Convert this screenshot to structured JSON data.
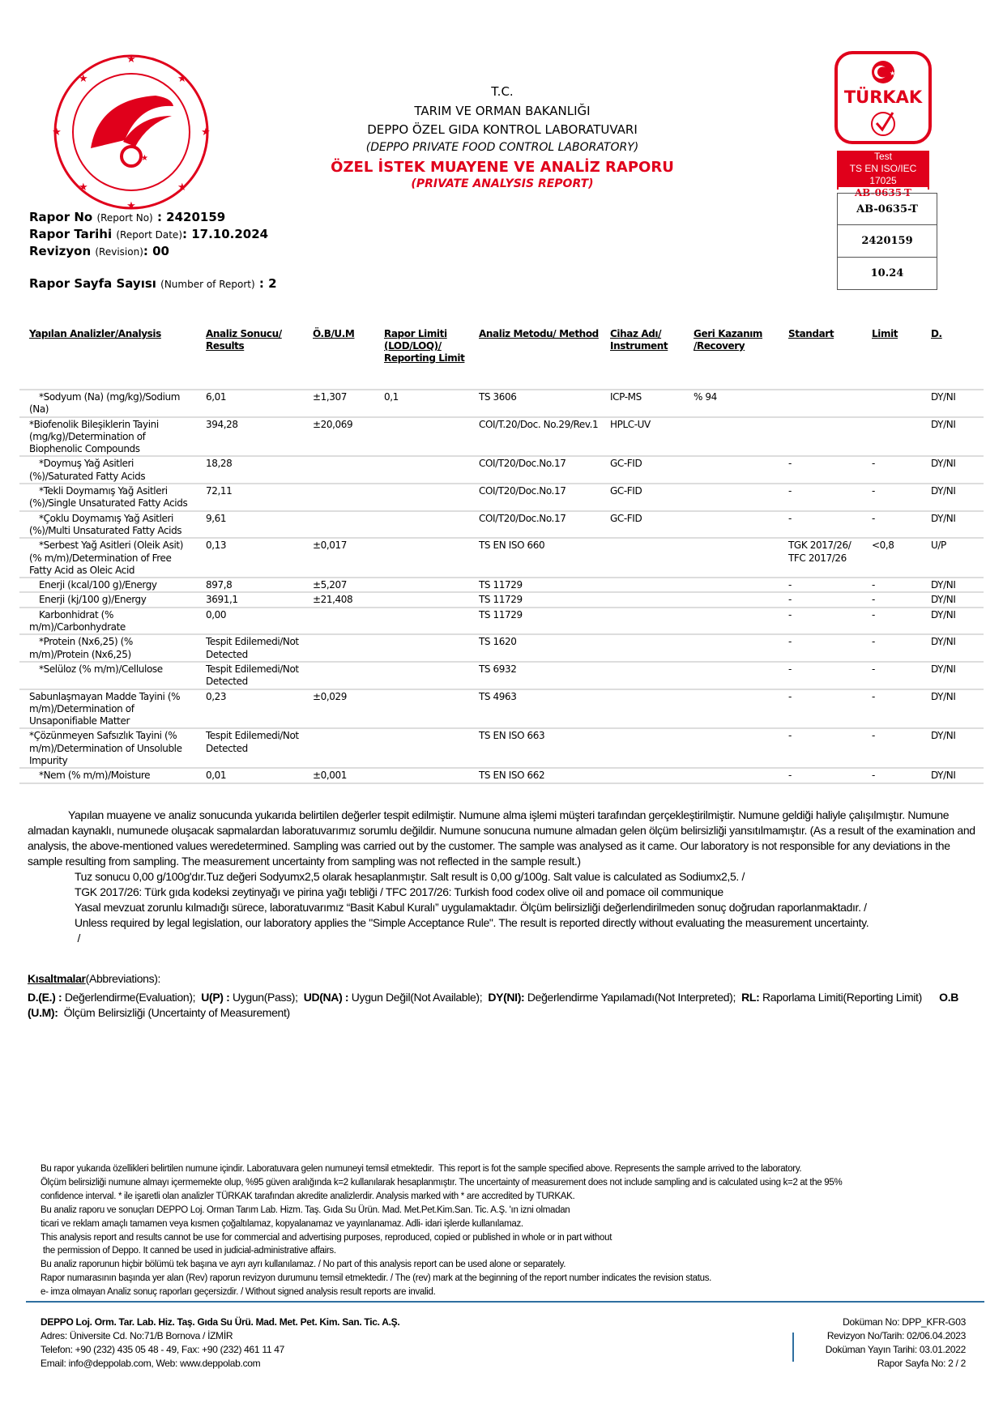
{
  "header": {
    "line1": "T.C.",
    "line2": "TARIM VE ORMAN BAKANLIĞI",
    "line3": "DEPPO ÖZEL GIDA KONTROL LABORATUVARI",
    "line4": "(DEPPO PRIVATE FOOD CONTROL LABORATORY)",
    "title": "ÖZEL İSTEK MUAYENE VE ANALİZ RAPORU",
    "subtitle": "(PRIVATE ANALYSIS REPORT)",
    "logo_text": "TÜRKİYE CUMHURİYETİ TARIM VE ORMAN BAKANLIĞI",
    "brand_red": "#e0001b"
  },
  "report_info": {
    "no_label": "Rapor No",
    "no_sub": "(Report No)",
    "no_value": ": 2420159",
    "date_label": "Rapor Tarihi",
    "date_sub": "(Report Date)",
    "date_value": ": 17.10.2024",
    "rev_label": "Revizyon",
    "rev_sub": "(Revision)",
    "rev_value": ": 00",
    "pages_label": "Rapor Sayfa Sayısı",
    "pages_sub": "(Number of Report)",
    "pages_value": ": 2"
  },
  "turkak": {
    "logo": "TÜRKAK",
    "test": "Test",
    "standard": "TS EN ISO/IEC 17025",
    "code": "AB-0635-T",
    "box1": "AB-0635-T",
    "box2": "2420159",
    "box3": "10.24"
  },
  "table": {
    "headers": [
      "Yapılan Analizler/Analysis",
      "Analiz Sonucu/ Results",
      "Ö.B/U.M",
      "Rapor Limiti (LOD/LOQ)/ Reporting Limit",
      "Analiz Metodu/ Method",
      "Cihaz Adı/ Instrument",
      "Geri Kazanım /Recovery",
      "Standart",
      "Limit",
      "D."
    ],
    "rows": [
      {
        "analysis": "*Sodyum (Na) (mg/kg)/Sodium (Na)",
        "indent": true,
        "result": "6,01",
        "ob": "±1,307",
        "limit": "0,1",
        "method": "TS 3606",
        "instrument": "ICP-MS",
        "recovery": "% 94",
        "standard": "",
        "lim": "",
        "d": "DY/NI"
      },
      {
        "analysis": "*Biofenolik Bileşiklerin Tayini (mg/kg)/Determination of Biophenolic Compounds",
        "indent": false,
        "result": "394,28",
        "ob": "±20,069",
        "limit": "",
        "method": "COI/T.20/Doc. No.29/Rev.1",
        "instrument": "HPLC-UV",
        "recovery": "",
        "standard": "",
        "lim": "",
        "d": "DY/NI"
      },
      {
        "analysis": "*Doymuş Yağ Asitleri (%)/Saturated Fatty Acids",
        "indent": true,
        "result": "18,28",
        "ob": "",
        "limit": "",
        "method": "COI/T20/Doc.No.17",
        "instrument": "GC-FID",
        "recovery": "",
        "standard": "-",
        "lim": "-",
        "d": "DY/NI"
      },
      {
        "analysis": "*Tekli Doymamış Yağ Asitleri (%)/Single Unsaturated Fatty Acids",
        "indent": true,
        "result": "72,11",
        "ob": "",
        "limit": "",
        "method": "COI/T20/Doc.No.17",
        "instrument": "GC-FID",
        "recovery": "",
        "standard": "-",
        "lim": "-",
        "d": "DY/NI"
      },
      {
        "analysis": "*Çoklu Doymamış Yağ Asitleri (%)/Multi Unsaturated Fatty Acids",
        "indent": true,
        "result": "9,61",
        "ob": "",
        "limit": "",
        "method": "COI/T20/Doc.No.17",
        "instrument": "GC-FID",
        "recovery": "",
        "standard": "-",
        "lim": "-",
        "d": "DY/NI"
      },
      {
        "analysis": "*Serbest Yağ Asitleri (Oleik Asit) (% m/m)/Determination of Free Fatty Acid as Oleic Acid",
        "indent": true,
        "result": "0,13",
        "ob": "±0,017",
        "limit": "",
        "method": "TS EN ISO 660",
        "instrument": "",
        "recovery": "",
        "standard": "TGK 2017/26/ TFC 2017/26",
        "lim": "<0,8",
        "d": "U/P"
      },
      {
        "analysis": "Enerji (kcal/100 g)/Energy",
        "indent": true,
        "result": "897,8",
        "ob": "±5,207",
        "limit": "",
        "method": "TS 11729",
        "instrument": "",
        "recovery": "",
        "standard": "-",
        "lim": "-",
        "d": "DY/NI"
      },
      {
        "analysis": "Enerji (kj/100 g)/Energy",
        "indent": true,
        "result": "3691,1",
        "ob": "±21,408",
        "limit": "",
        "method": "TS 11729",
        "instrument": "",
        "recovery": "",
        "standard": "-",
        "lim": "-",
        "d": "DY/NI"
      },
      {
        "analysis": "Karbonhidrat (% m/m)/Carbonhydrate",
        "indent": true,
        "result": "0,00",
        "ob": "",
        "limit": "",
        "method": "TS 11729",
        "instrument": "",
        "recovery": "",
        "standard": "-",
        "lim": "-",
        "d": "DY/NI"
      },
      {
        "analysis": "*Protein (Nx6,25) (% m/m)/Protein (Nx6,25)",
        "indent": true,
        "result": "Tespit Edilemedi/Not Detected",
        "ob": "",
        "limit": "",
        "method": "TS 1620",
        "instrument": "",
        "recovery": "",
        "standard": "-",
        "lim": "-",
        "d": "DY/NI"
      },
      {
        "analysis": "*Selüloz (% m/m)/Cellulose",
        "indent": true,
        "result": "Tespit Edilemedi/Not Detected",
        "ob": "",
        "limit": "",
        "method": "TS 6932",
        "instrument": "",
        "recovery": "",
        "standard": "-",
        "lim": "-",
        "d": "DY/NI"
      },
      {
        "analysis": "Sabunlaşmayan Madde Tayini (% m/m)/Determination of Unsaponifiable Matter",
        "indent": false,
        "result": "0,23",
        "ob": "±0,029",
        "limit": "",
        "method": "TS 4963",
        "instrument": "",
        "recovery": "",
        "standard": "-",
        "lim": "-",
        "d": "DY/NI"
      },
      {
        "analysis": "*Çözünmeyen Safsızlık Tayini (% m/m)/Determination of Unsoluble Impurity",
        "indent": false,
        "result": "Tespit Edilemedi/Not Detected",
        "ob": "",
        "limit": "",
        "method": "TS EN ISO 663",
        "instrument": "",
        "recovery": "",
        "standard": "-",
        "lim": "-",
        "d": "DY/NI"
      },
      {
        "analysis": "*Nem (% m/m)/Moisture",
        "indent": true,
        "result": "0,01",
        "ob": "±0,001",
        "limit": "",
        "method": "TS EN ISO 662",
        "instrument": "",
        "recovery": "",
        "standard": "-",
        "lim": "-",
        "d": "DY/NI"
      }
    ]
  },
  "notes": {
    "para": "Yapılan muayene ve analiz sonucunda yukarıda belirtilen değerler tespit edilmiştir. Numune alma işlemi müşteri tarafından gerçekleştirilmiştir. Numune geldiği haliyle çalışılmıştır. Numune almadan kaynaklı, numunede oluşacak sapmalardan laboratuvarımız sorumlu değildir. Numune sonucuna numune almadan gelen ölçüm belirsizliği yansıtılmamıştır. (As a result of the examination and analysis, the above-mentioned values   weredetermined. Sampling was carried out by the customer. The sample was analysed as it came. Our laboratory is not responsible for any deviations in the sample resulting from sampling. The measurement uncertainty from sampling was not reflected in the sample result.)",
    "lines": [
      "Tuz sonucu 0,00 g/100g'dır.Tuz değeri Sodyumx2,5 olarak hesaplanmıştır. Salt result is 0,00 g/100g. Salt value is calculated as Sodiumx2,5. /",
      "TGK 2017/26: Türk gıda kodeksi zeytinyağı ve pirina yağı tebliği / TFC 2017/26: Turkish food codex olive oil and pomace oil communique",
      "Yasal mevzuat zorunlu kılmadığı sürece, laboratuvarımız “Basit Kabul Kuralı” uygulamaktadır. Ölçüm belirsizliği değerlendirilmeden sonuç doğrudan raporlanmaktadır. /",
      "Unless required by legal legislation, our laboratory applies the \"Simple Acceptance Rule\". The result is reported directly without evaluating the measurement uncertainty.",
      " /"
    ]
  },
  "abbreviations": {
    "title": "Kısaltmalar",
    "title_sub": "(Abbreviations):",
    "items": [
      {
        "key": "D.(E.) :",
        "text": " Değerlendirme(Evaluation);  "
      },
      {
        "key": "U(P) :",
        "text": " Uygun(Pass);  "
      },
      {
        "key": "UD(NA) :",
        "text": " Uygun Değil(Not Available);  "
      },
      {
        "key": "DY(NI):",
        "text": " Değerlendirme Yapılamadı(Not Interpreted);  "
      },
      {
        "key": "RL:",
        "text": " Raporlama Limiti(Reporting Limit)      "
      },
      {
        "key": "O.B (U.M):",
        "text": "  Ölçüm Belirsizliği (Uncertainty of Measurement)"
      }
    ]
  },
  "disclaimer": [
    "Bu rapor yukarıda özellikleri belirtilen numune içindir. Laboratuvara gelen numuneyi temsil etmektedir.  This report is fot the sample specified above. Represents the sample arrived to the laboratory.",
    "Ölçüm belirsizliği numune almayı içermemekte olup, %95 güven aralığında k=2 kullanılarak hesaplanmıştır. The uncertainty of measurement does not include sampling and is calculated using k=2 at the 95%",
    "confidence interval. * ile işaretli olan analizler TÜRKAK tarafından akredite analizlerdir. Analysis marked with * are accredited by TURKAK.",
    "Bu analiz raporu ve sonuçları DEPPO Loj. Orman Tarım Lab. Hizm. Taş. Gıda Su Ürün. Mad. Met.Pet.Kim.San. Tic. A.Ş. 'ın izni olmadan",
    "ticari ve reklam amaçlı tamamen veya kısmen çoğaltılamaz, kopyalanamaz ve yayınlanamaz. Adli- idari işlerde kullanılamaz.",
    "This analysis report and results cannot be use for commercial and advertising purposes, reproduced, copied or published in whole or in part without",
    " the permission of Deppo. It canned be used in judicial-administrative affairs.",
    "Bu analiz raporunun hiçbir bölümü tek başına ve ayrı ayrı kullanılamaz. / No part of this analysis report can be used alone or separately.",
    "Rapor numarasının başında yer alan (Rev) raporun revizyon durumunu temsil etmektedir. / The (rev) mark at the beginning of the report number indicates the revision status.",
    "e- imza olmayan Analiz sonuç raporları geçersizdir. / Without signed analysis result reports are invalid."
  ],
  "footer": {
    "company": "DEPPO Loj. Orm. Tar. Lab. Hiz. Taş. Gıda Su Ürü. Mad. Met. Pet. Kim. San. Tic. A.Ş.",
    "address": "Adres: Üniversite Cd. No:71/B Bornova / İZMİR",
    "phone": "Telefon: +90 (232) 435 05 48 - 49, Fax: +90 (232) 461 11 47",
    "email": "Email: info@deppolab.com,  Web: www.deppolab.com",
    "doc_no": "Doküman No: DPP_KFR-G03",
    "revision": "Revizyon No/Tarih: 02/06.04.2023",
    "publish_date": "Doküman Yayın Tarihi: 03.01.2022",
    "page": "Rapor Sayfa No: 2 / 2",
    "rule_color": "#2f6fa0"
  }
}
